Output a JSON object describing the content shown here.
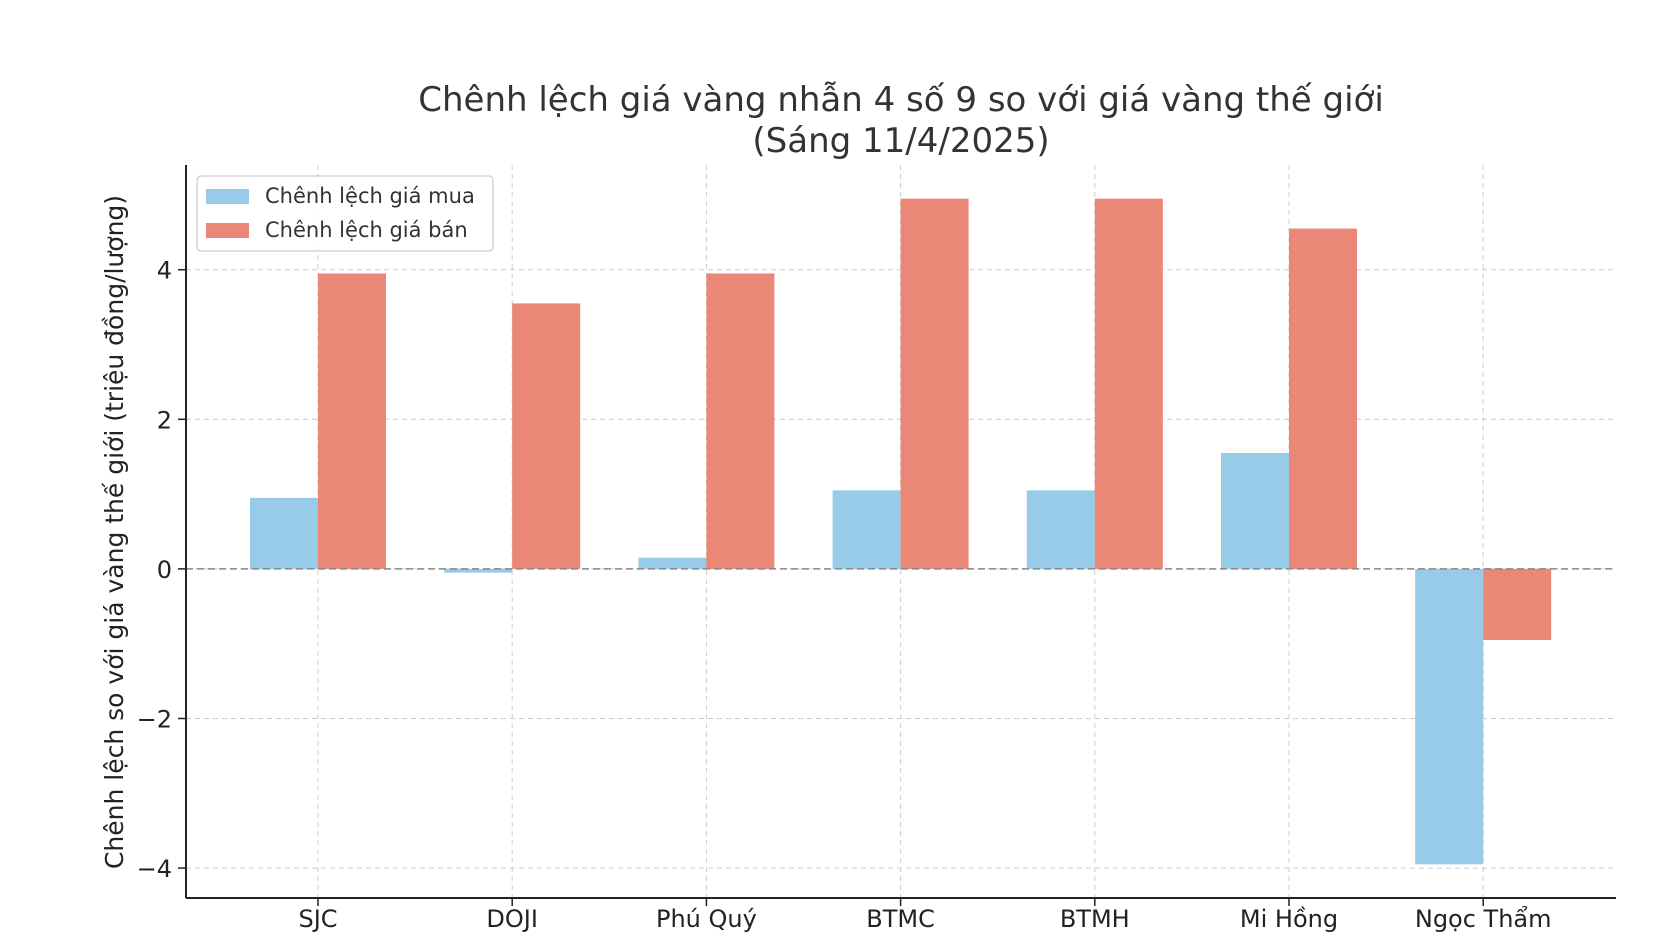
{
  "chart_data": {
    "type": "bar",
    "title": "Chênh lệch giá vàng nhẫn 4 số 9 so với giá vàng thế giới",
    "subtitle": "(Sáng 11/4/2025)",
    "xlabel": "",
    "ylabel": "Chênh lệch so với giá vàng thế giới (triệu đồng/lượng)",
    "categories": [
      "SJC",
      "DOJI",
      "Phú Quý",
      "BTMC",
      "BTMH",
      "Mi Hồng",
      "Ngọc Thẩm"
    ],
    "series": [
      {
        "name": "Chênh lệch giá mua",
        "color": "#97cbe8",
        "values": [
          0.95,
          -0.05,
          0.15,
          1.05,
          1.05,
          1.55,
          -3.95
        ]
      },
      {
        "name": "Chênh lệch giá bán",
        "color": "#eb8777",
        "values": [
          3.95,
          3.55,
          3.95,
          4.95,
          4.95,
          4.55,
          -0.95
        ]
      }
    ],
    "ylim": [
      -4.4,
      5.4
    ],
    "yticks": [
      -4,
      -2,
      0,
      2,
      4
    ],
    "ytick_labels": [
      "−4",
      "−2",
      "0",
      "2",
      "4"
    ],
    "grid": true,
    "zero_line": true,
    "legend_position": "top-left"
  }
}
